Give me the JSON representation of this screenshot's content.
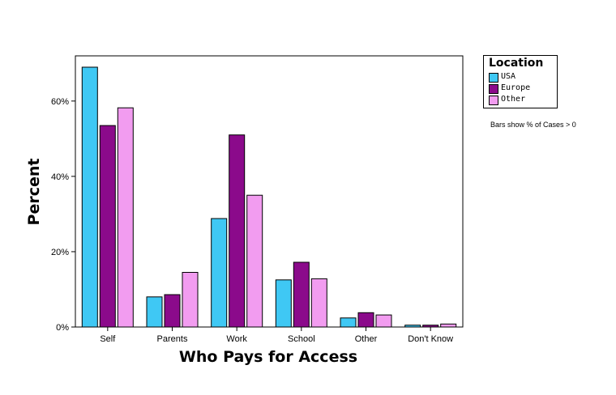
{
  "chart_data": {
    "type": "bar",
    "categories": [
      "Self",
      "Parents",
      "Work",
      "School",
      "Other",
      "Don't Know"
    ],
    "series": [
      {
        "name": "USA",
        "color": "#3FC8F4",
        "values": [
          69.0,
          8.0,
          28.8,
          12.5,
          2.4,
          0.5
        ]
      },
      {
        "name": "Europe",
        "color": "#8B0A8B",
        "values": [
          53.5,
          8.6,
          51.0,
          17.2,
          3.8,
          0.5
        ]
      },
      {
        "name": "Other",
        "color": "#F29CF0",
        "values": [
          58.2,
          14.5,
          35.0,
          12.8,
          3.2,
          0.8
        ]
      }
    ],
    "xlabel": "Who Pays for Access",
    "ylabel": "Percent",
    "ylim": [
      0,
      72
    ],
    "yticks": [
      0,
      20,
      40,
      60
    ],
    "ytick_labels": [
      "0%",
      "20%",
      "40%",
      "60%"
    ],
    "legend_title": "Location",
    "legend_position": "right",
    "note": "Bars show % of Cases > 0",
    "grid": false
  }
}
